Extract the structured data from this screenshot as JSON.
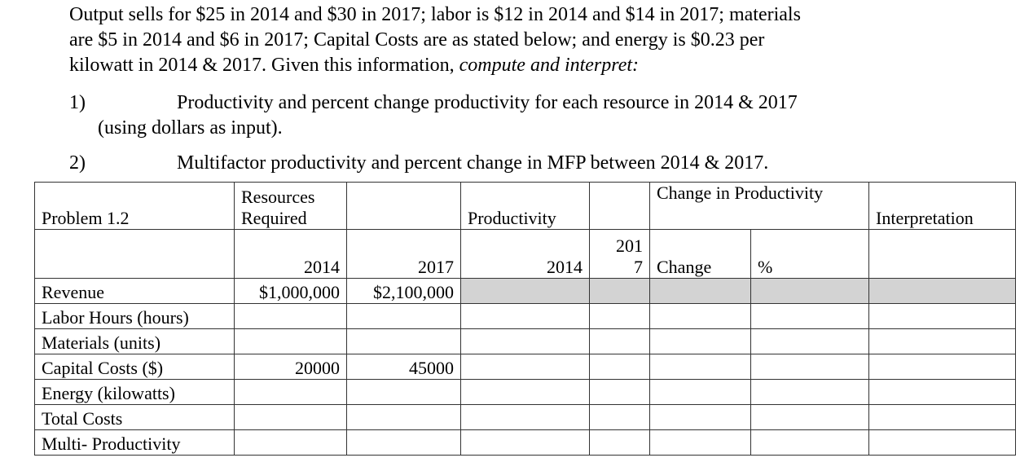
{
  "intro": {
    "line1": "Output sells for $25 in 2014 and $30 in 2017; labor is $12 in 2014 and $14 in 2017; materials",
    "line2": "are $5 in 2014 and $6 in 2017; Capital Costs are as stated below; and energy is $0.23 per",
    "line3_a": "kilowatt in 2014 & 2017.  Given this information, ",
    "line3_b": "compute and interpret:"
  },
  "questions": [
    {
      "num": "1)",
      "text": "Productivity and percent change productivity for each resource in 2014 & 2017",
      "cont": "(using dollars as input)."
    },
    {
      "num": "2)",
      "text": "Multifactor productivity and percent change in MFP between 2014 & 2017."
    }
  ],
  "table": {
    "header": {
      "problem": "Problem 1.2",
      "resources_1": "Resources",
      "resources_2": "Required",
      "productivity": "Productivity",
      "change_in_productivity": "Change in Productivity",
      "interpretation": "Interpretation"
    },
    "subheader": {
      "y2014": "2014",
      "y2017": "2017",
      "p2014": "2014",
      "p2017_a": "201",
      "p2017_b": "7",
      "change": "Change",
      "percent": "%"
    },
    "rows": [
      {
        "label": "Revenue",
        "v2014": "$1,000,000",
        "v2017": "$2,100,000"
      },
      {
        "label": "Labor Hours (hours)",
        "v2014": "",
        "v2017": ""
      },
      {
        "label": "Materials (units)",
        "v2014": "",
        "v2017": ""
      },
      {
        "label": "Capital Costs ($)",
        "v2014": "20000",
        "v2017": "45000"
      },
      {
        "label": "Energy (kilowatts)",
        "v2014": "",
        "v2017": ""
      },
      {
        "label": "Total Costs",
        "v2014": "",
        "v2017": ""
      },
      {
        "label": "Multi- Productivity",
        "v2014": "",
        "v2017": ""
      }
    ],
    "shade_color": "#d3d3d3"
  }
}
